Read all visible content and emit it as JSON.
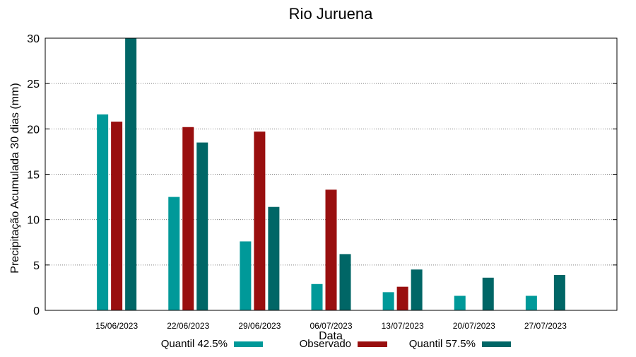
{
  "chart_data": {
    "type": "bar",
    "title": "Rio Juruena",
    "xlabel": "Data",
    "ylabel": "Precipitação Acumulada 30 dias (mm)",
    "categories": [
      "15/06/2023",
      "22/06/2023",
      "29/06/2023",
      "06/07/2023",
      "13/07/2023",
      "20/07/2023",
      "27/07/2023"
    ],
    "ylim": [
      0,
      30
    ],
    "yticks": [
      0,
      5,
      10,
      15,
      20,
      25,
      30
    ],
    "grid": true,
    "legend_position": "bottom",
    "series": [
      {
        "name": "Quantil 42.5%",
        "color": "#009999",
        "values": [
          21.6,
          12.5,
          7.6,
          2.9,
          2.0,
          1.6,
          1.6
        ]
      },
      {
        "name": "Observado",
        "color": "#990f0f",
        "values": [
          20.8,
          20.2,
          19.7,
          13.3,
          2.6,
          null,
          null
        ]
      },
      {
        "name": "Quantil 57.5%",
        "color": "#006666",
        "values": [
          30.0,
          18.5,
          11.4,
          6.2,
          4.5,
          3.6,
          3.9
        ]
      }
    ]
  }
}
